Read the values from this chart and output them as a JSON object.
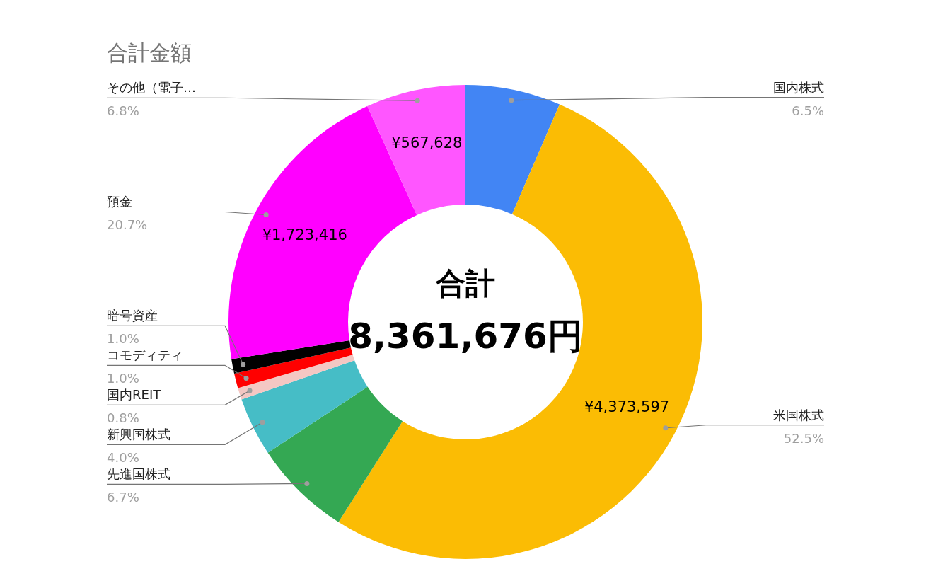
{
  "chart_data": {
    "type": "donut",
    "title": "合計金額",
    "categories": [
      "国内株式",
      "米国株式",
      "先進国株式",
      "新興国株式",
      "国内REIT",
      "コモディティ",
      "暗号資産",
      "預金",
      "その他（電子…"
    ],
    "values": [
      6.5,
      52.5,
      6.7,
      4.0,
      0.8,
      1.0,
      1.0,
      20.7,
      6.8
    ],
    "value_labels": [
      "6.5%",
      "52.5%",
      "6.7%",
      "4.0%",
      "0.8%",
      "1.0%",
      "1.0%",
      "20.7%",
      "6.8%"
    ],
    "colors": [
      "#4285f4",
      "#fbbc04",
      "#34a853",
      "#46bdc6",
      "#f4c7c3",
      "#ff0000",
      "#000000",
      "#ff00ff",
      "#ff56ff"
    ],
    "annotations": [
      {
        "text": "¥4,373,597",
        "x": "米国株式"
      },
      {
        "text": "¥1,723,416",
        "x": "預金"
      },
      {
        "text": "¥567,628",
        "x": "その他（電子…"
      },
      "合計",
      "8,361,676円"
    ]
  }
}
